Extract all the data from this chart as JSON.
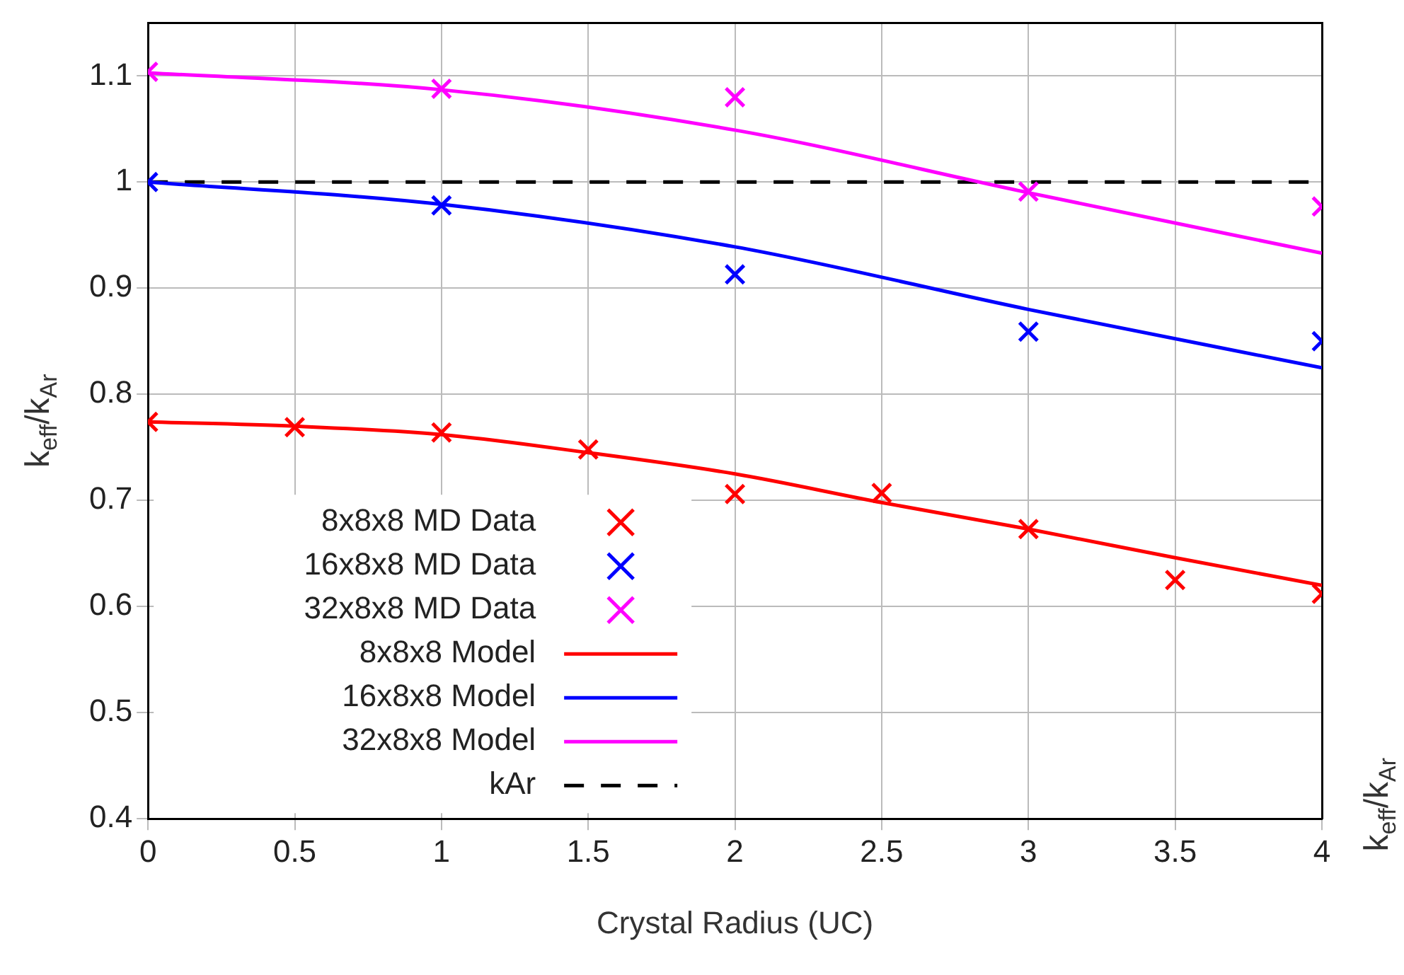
{
  "chart_data": {
    "type": "scatter",
    "xlabel": "Crystal Radius (UC)",
    "ylabel": "k$_{eff}$/k$_{Ar}$",
    "y2label": "k$_{eff}$/k$_{Ar}$",
    "xlim": [
      0,
      4
    ],
    "xticks": [
      0,
      0.5,
      1,
      1.5,
      2,
      2.5,
      3,
      3.5,
      4
    ],
    "ylim": [
      0.4,
      1.15
    ],
    "yticks": [
      0.4,
      0.5,
      0.6,
      0.7,
      0.8,
      0.9,
      1,
      1.1
    ],
    "grid": true,
    "legend": "bottom left",
    "series": [
      {
        "name": "8x8x8 MD Data",
        "marker": "cross",
        "color": "#ff0000",
        "x": [
          0,
          0.5,
          1,
          1.5,
          2,
          2.5,
          3,
          3.5,
          4
        ],
        "values": [
          0.774,
          0.769,
          0.764,
          0.748,
          0.706,
          0.707,
          0.673,
          0.625,
          0.612
        ]
      },
      {
        "name": "16x8x8 MD Data",
        "marker": "cross",
        "color": "#0000ff",
        "x": [
          0,
          1,
          2,
          3,
          4
        ],
        "values": [
          1.0,
          0.978,
          0.913,
          0.859,
          0.85
        ]
      },
      {
        "name": "32x8x8 MD Data",
        "marker": "cross",
        "color": "#ff00ff",
        "x": [
          0,
          1,
          2,
          3,
          4
        ],
        "values": [
          1.104,
          1.088,
          1.08,
          0.991,
          0.977
        ]
      },
      {
        "name": "8x8x8 Model",
        "type": "line",
        "color": "#ff0000",
        "x": [
          0,
          0.5,
          1,
          1.5,
          2,
          2.5,
          3,
          3.5,
          4
        ],
        "values": [
          0.774,
          0.77,
          0.762,
          0.745,
          0.725,
          0.698,
          0.673,
          0.646,
          0.62
        ]
      },
      {
        "name": "16x8x8 Model",
        "type": "line",
        "color": "#0000ff",
        "x": [
          0,
          1,
          2,
          3,
          4
        ],
        "values": [
          1.0,
          0.979,
          0.939,
          0.88,
          0.825
        ]
      },
      {
        "name": "32x8x8 Model",
        "type": "line",
        "color": "#ff00ff",
        "x": [
          0,
          1,
          2,
          3,
          4
        ],
        "values": [
          1.103,
          1.087,
          1.049,
          0.99,
          0.933
        ]
      },
      {
        "name": "kAr",
        "type": "line",
        "line_style": "dashed",
        "color": "#000000",
        "x": [
          0,
          4
        ],
        "values": [
          1,
          1
        ]
      }
    ]
  }
}
